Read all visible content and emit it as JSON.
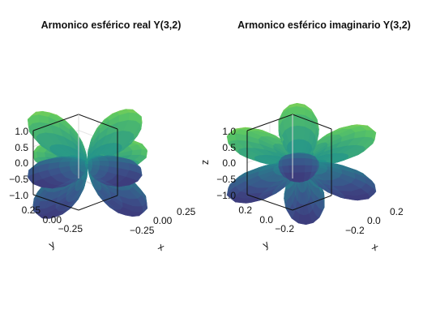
{
  "figure": {
    "colormap": [
      "#440154",
      "#3b528b",
      "#21918c",
      "#5ec962",
      "#fde725"
    ]
  },
  "chart_data": [
    {
      "type": "surface3d",
      "title": "Armonico esférico real Y(3,2)",
      "function": "real part of spherical harmonic Y(3,2)",
      "zlabel": "",
      "xlabel": "x",
      "ylabel": "y",
      "zlim": [
        -1.0,
        1.0
      ],
      "xlim": [
        -0.4,
        0.4
      ],
      "ylim": [
        -0.4,
        0.4
      ],
      "zticks": [
        "1.0",
        "0.5",
        "0.0",
        "−0.5",
        "−1.0"
      ],
      "xticks": [
        "−0.25",
        "0.00",
        "0.25"
      ],
      "yticks": [
        "0.25",
        "0.00",
        "−0.25"
      ],
      "grid": true
    },
    {
      "type": "surface3d",
      "title": "Armonico esférico imaginario Y(3,2)",
      "function": "imaginary part of spherical harmonic Y(3,2)",
      "zlabel": "z",
      "xlabel": "x",
      "ylabel": "y",
      "zlim": [
        -1.0,
        1.0
      ],
      "xlim": [
        -0.3,
        0.3
      ],
      "ylim": [
        -0.3,
        0.3
      ],
      "zticks": [
        "1.0",
        "0.5",
        "0.0",
        "−0.5",
        "−1.0"
      ],
      "xticks": [
        "−0.2",
        "0.0",
        "0.2"
      ],
      "yticks": [
        "0.2",
        "0.0",
        "−0.2"
      ],
      "grid": true
    }
  ]
}
